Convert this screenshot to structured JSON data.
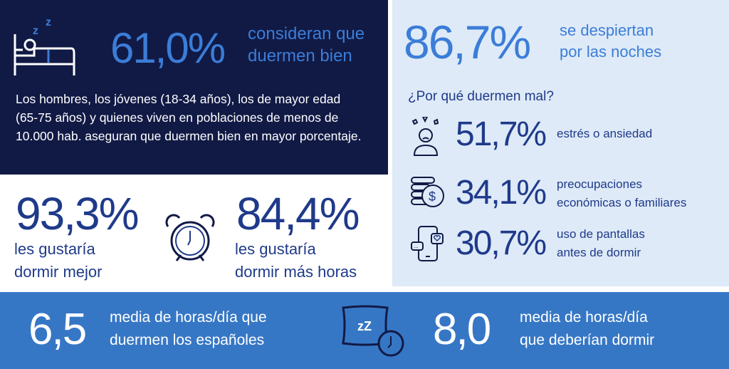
{
  "colors": {
    "navy": "#111a45",
    "accent": "#3b7dd8",
    "dark_blue": "#1f3a8a",
    "band": "#3677c5",
    "light_panel": "#deeaf7"
  },
  "sleep_well": {
    "value": "61,0%",
    "label_line1": "consideran que",
    "label_line2": "duermen bien",
    "description": "Los hombres, los jóvenes (18-34 años), los de mayor edad (65-75 años) y quienes viven en poblaciones de menos de 10.000 hab. aseguran que duermen bien en mayor porcentaje.",
    "icon": "bed-sleeping-icon"
  },
  "wake_up": {
    "value": "86,7%",
    "label_line1": "se despiertan",
    "label_line2": "por las noches"
  },
  "reasons": {
    "title": "¿Por qué duermen mal?",
    "items": [
      {
        "icon": "stressed-person-icon",
        "value": "51,7%",
        "line1": "estrés o ansiedad",
        "line2": ""
      },
      {
        "icon": "money-coins-icon",
        "value": "34,1%",
        "line1": "preocupaciones",
        "line2": "económicas o familiares"
      },
      {
        "icon": "smartphone-chat-icon",
        "value": "30,7%",
        "line1": "uso de pantallas",
        "line2": "antes de dormir"
      }
    ]
  },
  "wishes": [
    {
      "value": "93,3%",
      "line1": "les gustaría",
      "line2": "dormir mejor"
    },
    {
      "value": "84,4%",
      "line1": "les gustaría",
      "line2": "dormir más horas"
    }
  ],
  "hours": [
    {
      "value": "6,5",
      "line1": "media de horas/día que",
      "line2": "duermen los españoles"
    },
    {
      "value": "8,0",
      "line1": "media de horas/día",
      "line2": "que deberían dormir"
    }
  ]
}
